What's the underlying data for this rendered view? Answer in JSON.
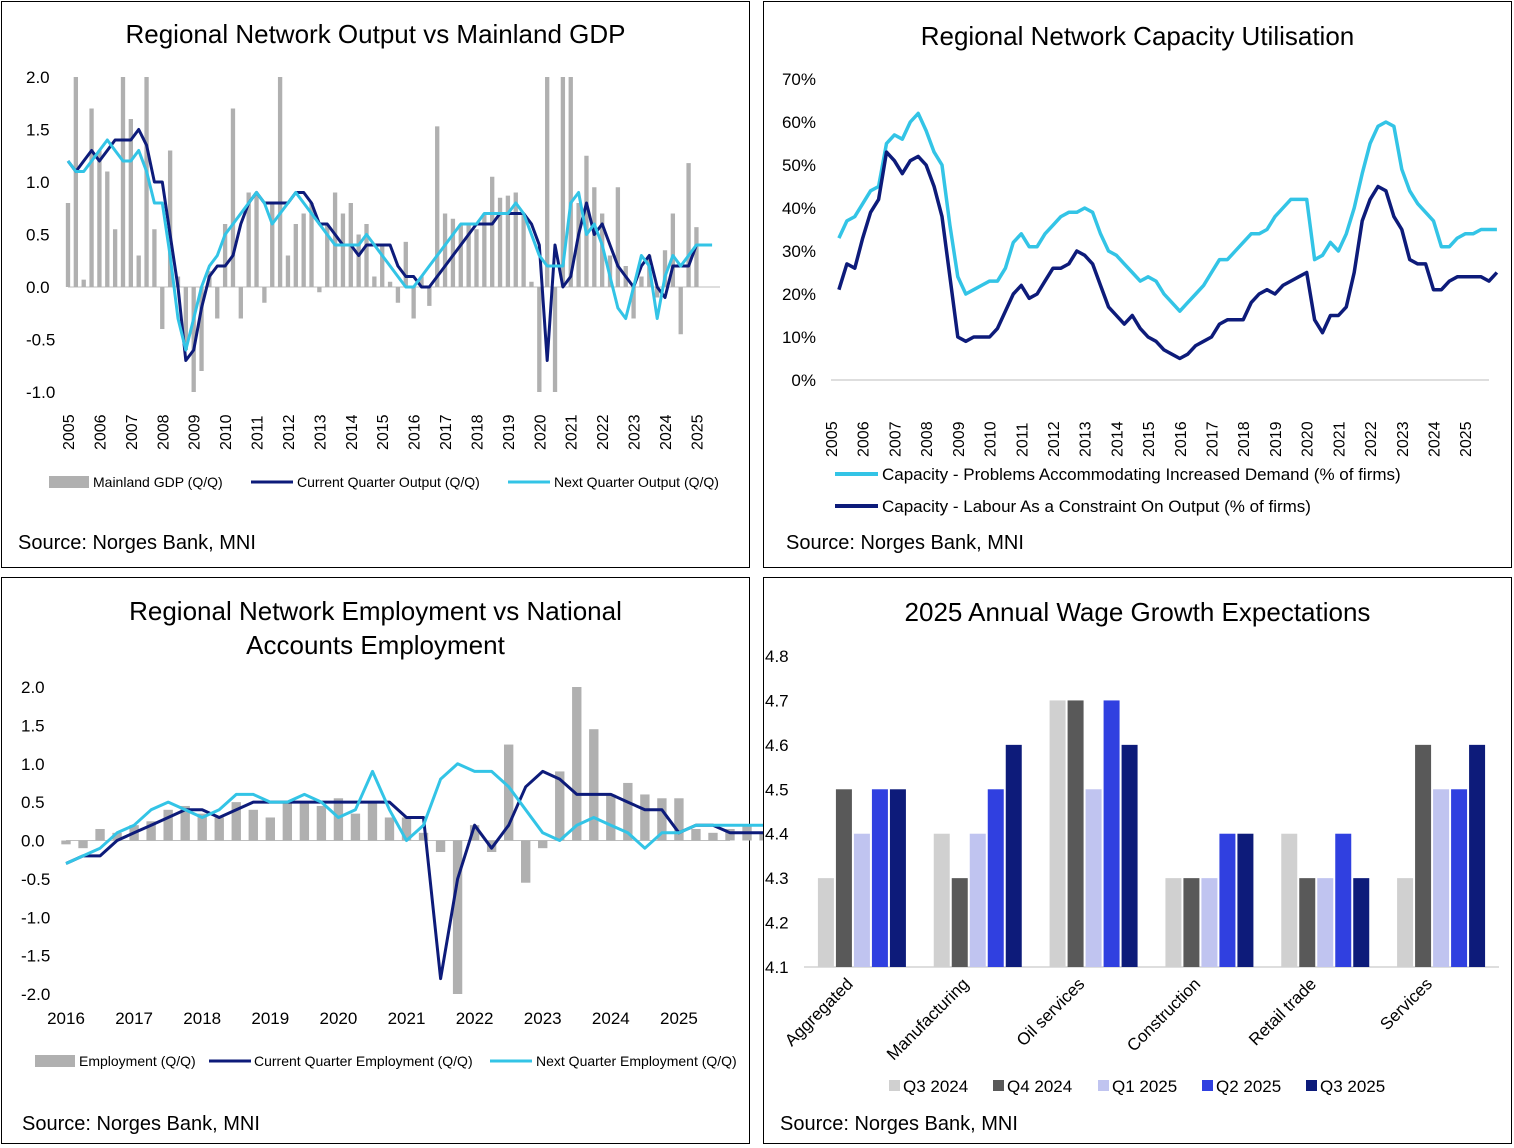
{
  "charts": [
    {
      "title": "Regional Network Output vs Mainland GDP",
      "source": "Source: Norges Bank, MNI",
      "legend": [
        "Mainland GDP (Q/Q)",
        "Current Quarter Output (Q/Q)",
        "Next Quarter Output (Q/Q)"
      ],
      "yticks": [
        "2.0",
        "1.5",
        "1.0",
        "0.5",
        "0.0",
        "-0.5",
        "-1.0"
      ],
      "xticks": [
        "2005",
        "2006",
        "2007",
        "2008",
        "2009",
        "2010",
        "2011",
        "2012",
        "2013",
        "2014",
        "2015",
        "2016",
        "2017",
        "2018",
        "2019",
        "2020",
        "2021",
        "2022",
        "2023",
        "2024",
        "2025"
      ]
    },
    {
      "title": "Regional Network Capacity Utilisation",
      "source": "Source: Norges Bank, MNI",
      "legend": [
        "Capacity - Problems Accommodating Increased Demand (% of firms)",
        "Capacity - Labour As a Constraint On Output (% of firms)"
      ],
      "yticks": [
        "70%",
        "60%",
        "50%",
        "40%",
        "30%",
        "20%",
        "10%",
        "0%"
      ],
      "xticks": [
        "2005",
        "2006",
        "2007",
        "2008",
        "2009",
        "2010",
        "2011",
        "2012",
        "2013",
        "2014",
        "2015",
        "2016",
        "2017",
        "2018",
        "2019",
        "2020",
        "2021",
        "2022",
        "2023",
        "2024",
        "2025"
      ]
    },
    {
      "title_lines": [
        "Regional Network Employment vs National",
        "Accounts Employment"
      ],
      "source": "Source: Norges Bank, MNI",
      "legend": [
        "Employment (Q/Q)",
        "Current Quarter Employment (Q/Q)",
        "Next Quarter Employment (Q/Q)"
      ],
      "yticks": [
        "2.0",
        "1.5",
        "1.0",
        "0.5",
        "0.0",
        "-0.5",
        "-1.0",
        "-1.5",
        "-2.0"
      ],
      "xticks": [
        "2016",
        "2017",
        "2018",
        "2019",
        "2020",
        "2021",
        "2022",
        "2023",
        "2024",
        "2025"
      ]
    },
    {
      "title": "2025 Annual Wage Growth Expectations",
      "source": "Source: Norges Bank, MNI",
      "yticks": [
        "4.8",
        "4.7",
        "4.6",
        "4.5",
        "4.4",
        "4.3",
        "4.2",
        "4.1"
      ]
    }
  ],
  "colors": {
    "gray_bar": "#b0b0b0",
    "navy": "#0d1b7a",
    "cyan": "#33c4e6",
    "q3_2024": "#d0d0d0",
    "q4_2024": "#595959",
    "q1_2025": "#c0c4f0",
    "q2_2025": "#3040e0",
    "q3_2025": "#0d1b7a"
  },
  "chart_data": [
    {
      "type": "bar+line",
      "title": "Regional Network Output vs Mainland GDP",
      "ylim": [
        -1.0,
        2.0
      ],
      "x_start": 2005,
      "x_end": 2025.75,
      "series": [
        {
          "name": "Mainland GDP (Q/Q)",
          "type": "bar",
          "values": [
            0.8,
            2.0,
            0.07,
            1.7,
            1.3,
            1.1,
            0.55,
            2.0,
            1.6,
            0.3,
            2.0,
            0.55,
            -0.4,
            1.3,
            0.1,
            -0.6,
            -1.0,
            -0.8,
            0.15,
            -0.3,
            0.6,
            1.7,
            -0.3,
            0.9,
            0.9,
            -0.15,
            0.8,
            2.0,
            0.3,
            0.6,
            0.7,
            0.8,
            -0.05,
            0.6,
            0.9,
            0.7,
            0.8,
            0.5,
            0.6,
            0.1,
            0.4,
            0.05,
            -0.15,
            0.43,
            -0.3,
            0.1,
            -0.18,
            1.53,
            0.7,
            0.65,
            0.6,
            0.6,
            0.55,
            0.7,
            1.05,
            0.85,
            0.87,
            0.9,
            0.7,
            0.05,
            -1.0,
            2.0,
            -1.0,
            2.0,
            2.0,
            0.8,
            1.25,
            0.95,
            0.7,
            0.3,
            0.95,
            0.2,
            -0.3,
            0.1,
            0.3,
            -0.1,
            0.35,
            0.7,
            -0.45,
            1.18,
            0.57
          ]
        },
        {
          "name": "Current Quarter Output (Q/Q)",
          "type": "line",
          "values": [
            1.2,
            1.1,
            1.2,
            1.3,
            1.2,
            1.3,
            1.4,
            1.4,
            1.4,
            1.5,
            1.35,
            1.0,
            1.0,
            0.5,
            0.0,
            -0.7,
            -0.6,
            -0.2,
            0.1,
            0.2,
            0.2,
            0.3,
            0.6,
            0.8,
            0.9,
            0.8,
            0.8,
            0.8,
            0.8,
            0.9,
            0.9,
            0.8,
            0.6,
            0.6,
            0.5,
            0.4,
            0.4,
            0.3,
            0.4,
            0.4,
            0.4,
            0.4,
            0.2,
            0.1,
            0.1,
            0.0,
            0.0,
            0.1,
            0.2,
            0.3,
            0.4,
            0.5,
            0.6,
            0.6,
            0.6,
            0.7,
            0.7,
            0.7,
            0.7,
            0.6,
            0.4,
            -0.7,
            0.4,
            0.0,
            0.1,
            0.5,
            0.8,
            0.5,
            0.6,
            0.4,
            0.2,
            0.1,
            0.0,
            0.2,
            0.3,
            0.0,
            -0.1,
            0.2,
            0.2,
            0.2,
            0.4
          ]
        },
        {
          "name": "Next Quarter Output (Q/Q)",
          "type": "line",
          "values": [
            1.2,
            1.1,
            1.1,
            1.2,
            1.3,
            1.4,
            1.3,
            1.2,
            1.2,
            1.3,
            1.1,
            0.8,
            0.8,
            0.3,
            -0.3,
            -0.6,
            -0.3,
            0.0,
            0.2,
            0.3,
            0.5,
            0.6,
            0.7,
            0.8,
            0.9,
            0.8,
            0.6,
            0.7,
            0.8,
            0.9,
            0.8,
            0.7,
            0.6,
            0.5,
            0.4,
            0.4,
            0.4,
            0.4,
            0.5,
            0.4,
            0.3,
            0.2,
            0.1,
            0.0,
            0.0,
            0.1,
            0.2,
            0.3,
            0.4,
            0.5,
            0.6,
            0.6,
            0.6,
            0.7,
            0.7,
            0.7,
            0.7,
            0.8,
            0.7,
            0.5,
            0.3,
            0.2,
            0.2,
            0.2,
            0.8,
            0.9,
            0.5,
            0.6,
            0.4,
            0.1,
            -0.2,
            -0.3,
            0.0,
            0.3,
            0.2,
            -0.3,
            0.1,
            0.3,
            0.2,
            0.3,
            0.4,
            0.4,
            0.4
          ]
        }
      ]
    },
    {
      "type": "line",
      "title": "Regional Network Capacity Utilisation",
      "ylim": [
        0,
        70
      ],
      "x_start": 2005.25,
      "x_end": 2025.75,
      "series": [
        {
          "name": "Capacity - Problems Accommodating Increased Demand (% of firms)",
          "values": [
            33,
            37,
            38,
            41,
            44,
            45,
            55,
            57,
            56,
            60,
            62,
            58,
            53,
            50,
            36,
            24,
            20,
            21,
            22,
            23,
            23,
            26,
            32,
            34,
            31,
            31,
            34,
            36,
            38,
            39,
            39,
            40,
            39,
            34,
            30,
            29,
            27,
            25,
            23,
            24,
            23,
            20,
            18,
            16,
            18,
            20,
            22,
            25,
            28,
            28,
            30,
            32,
            34,
            34,
            35,
            38,
            40,
            42,
            42,
            42,
            28,
            29,
            32,
            30,
            34,
            40,
            48,
            55,
            59,
            60,
            59,
            49,
            44,
            41,
            39,
            37,
            31,
            31,
            33,
            34,
            34,
            35,
            35,
            35
          ]
        },
        {
          "name": "Capacity - Labour As a Constraint On Output (% of firms)",
          "values": [
            21,
            27,
            26,
            33,
            39,
            42,
            53,
            51,
            48,
            51,
            52,
            50,
            45,
            38,
            24,
            10,
            9,
            10,
            10,
            10,
            12,
            16,
            20,
            22,
            19,
            20,
            23,
            26,
            26,
            27,
            30,
            29,
            27,
            22,
            17,
            15,
            13,
            15,
            12,
            10,
            9,
            7,
            6,
            5,
            6,
            8,
            9,
            10,
            13,
            14,
            14,
            14,
            18,
            20,
            21,
            20,
            22,
            23,
            24,
            25,
            14,
            11,
            15,
            15,
            17,
            25,
            37,
            42,
            45,
            44,
            38,
            35,
            28,
            27,
            27,
            21,
            21,
            23,
            24,
            24,
            24,
            24,
            23,
            25
          ]
        }
      ]
    },
    {
      "type": "bar+line",
      "title": "Regional Network Employment vs National Accounts Employment",
      "ylim": [
        -2.0,
        2.0
      ],
      "x_start": 2016,
      "x_end": 2025.75,
      "series": [
        {
          "name": "Employment (Q/Q)",
          "type": "bar",
          "values": [
            -0.05,
            -0.1,
            0.15,
            0.1,
            0.2,
            0.25,
            0.4,
            0.45,
            0.35,
            0.3,
            0.5,
            0.4,
            0.3,
            0.5,
            0.5,
            0.45,
            0.55,
            0.35,
            0.5,
            0.3,
            0.3,
            0.1,
            -0.15,
            -2.0,
            0.2,
            -0.15,
            1.25,
            -0.55,
            -0.1,
            0.9,
            2.0,
            1.45,
            0.6,
            0.75,
            0.6,
            0.55,
            0.55,
            0.15,
            0.1,
            0.15,
            0.2,
            0.1,
            -0.05,
            0.2,
            0.15,
            0.1,
            0.35,
            0.2
          ]
        },
        {
          "name": "Current Quarter Employment (Q/Q)",
          "type": "line",
          "values": [
            -0.3,
            -0.2,
            -0.2,
            0.0,
            0.1,
            0.2,
            0.3,
            0.4,
            0.4,
            0.3,
            0.4,
            0.5,
            0.5,
            0.5,
            0.5,
            0.5,
            0.5,
            0.5,
            0.5,
            0.5,
            0.3,
            0.3,
            -1.8,
            -0.5,
            0.2,
            -0.1,
            0.2,
            0.7,
            0.9,
            0.8,
            0.6,
            0.6,
            0.6,
            0.5,
            0.4,
            0.4,
            0.1,
            0.2,
            0.2,
            0.1,
            0.1,
            0.1,
            0.15,
            0.2,
            0.2,
            0.2,
            0.2,
            0.2
          ]
        },
        {
          "name": "Next Quarter Employment (Q/Q)",
          "type": "line",
          "values": [
            -0.3,
            -0.2,
            -0.1,
            0.1,
            0.2,
            0.4,
            0.5,
            0.4,
            0.3,
            0.4,
            0.6,
            0.6,
            0.5,
            0.5,
            0.6,
            0.5,
            0.3,
            0.4,
            0.9,
            0.4,
            0.0,
            0.2,
            0.8,
            1.0,
            0.9,
            0.9,
            0.7,
            0.4,
            0.1,
            0.0,
            0.2,
            0.3,
            0.2,
            0.1,
            -0.1,
            0.1,
            0.1,
            0.2,
            0.2,
            0.2,
            0.2,
            0.2,
            0.2,
            0.2,
            0.2
          ]
        }
      ]
    },
    {
      "type": "bar",
      "title": "2025 Annual Wage Growth Expectations",
      "ylim": [
        4.1,
        4.8
      ],
      "categories": [
        "Aggregated",
        "Manufacturing",
        "Oil services",
        "Construction",
        "Retail trade",
        "Services"
      ],
      "series": [
        {
          "name": "Q3 2024",
          "values": [
            4.3,
            4.4,
            4.7,
            4.3,
            4.4,
            4.3
          ]
        },
        {
          "name": "Q4 2024",
          "values": [
            4.5,
            4.3,
            4.7,
            4.3,
            4.3,
            4.6
          ]
        },
        {
          "name": "Q1 2025",
          "values": [
            4.4,
            4.4,
            4.5,
            4.3,
            4.3,
            4.5
          ]
        },
        {
          "name": "Q2 2025",
          "values": [
            4.5,
            4.5,
            4.7,
            4.4,
            4.4,
            4.5
          ]
        },
        {
          "name": "Q3 2025",
          "values": [
            4.5,
            4.6,
            4.6,
            4.4,
            4.3,
            4.6
          ]
        }
      ]
    }
  ]
}
